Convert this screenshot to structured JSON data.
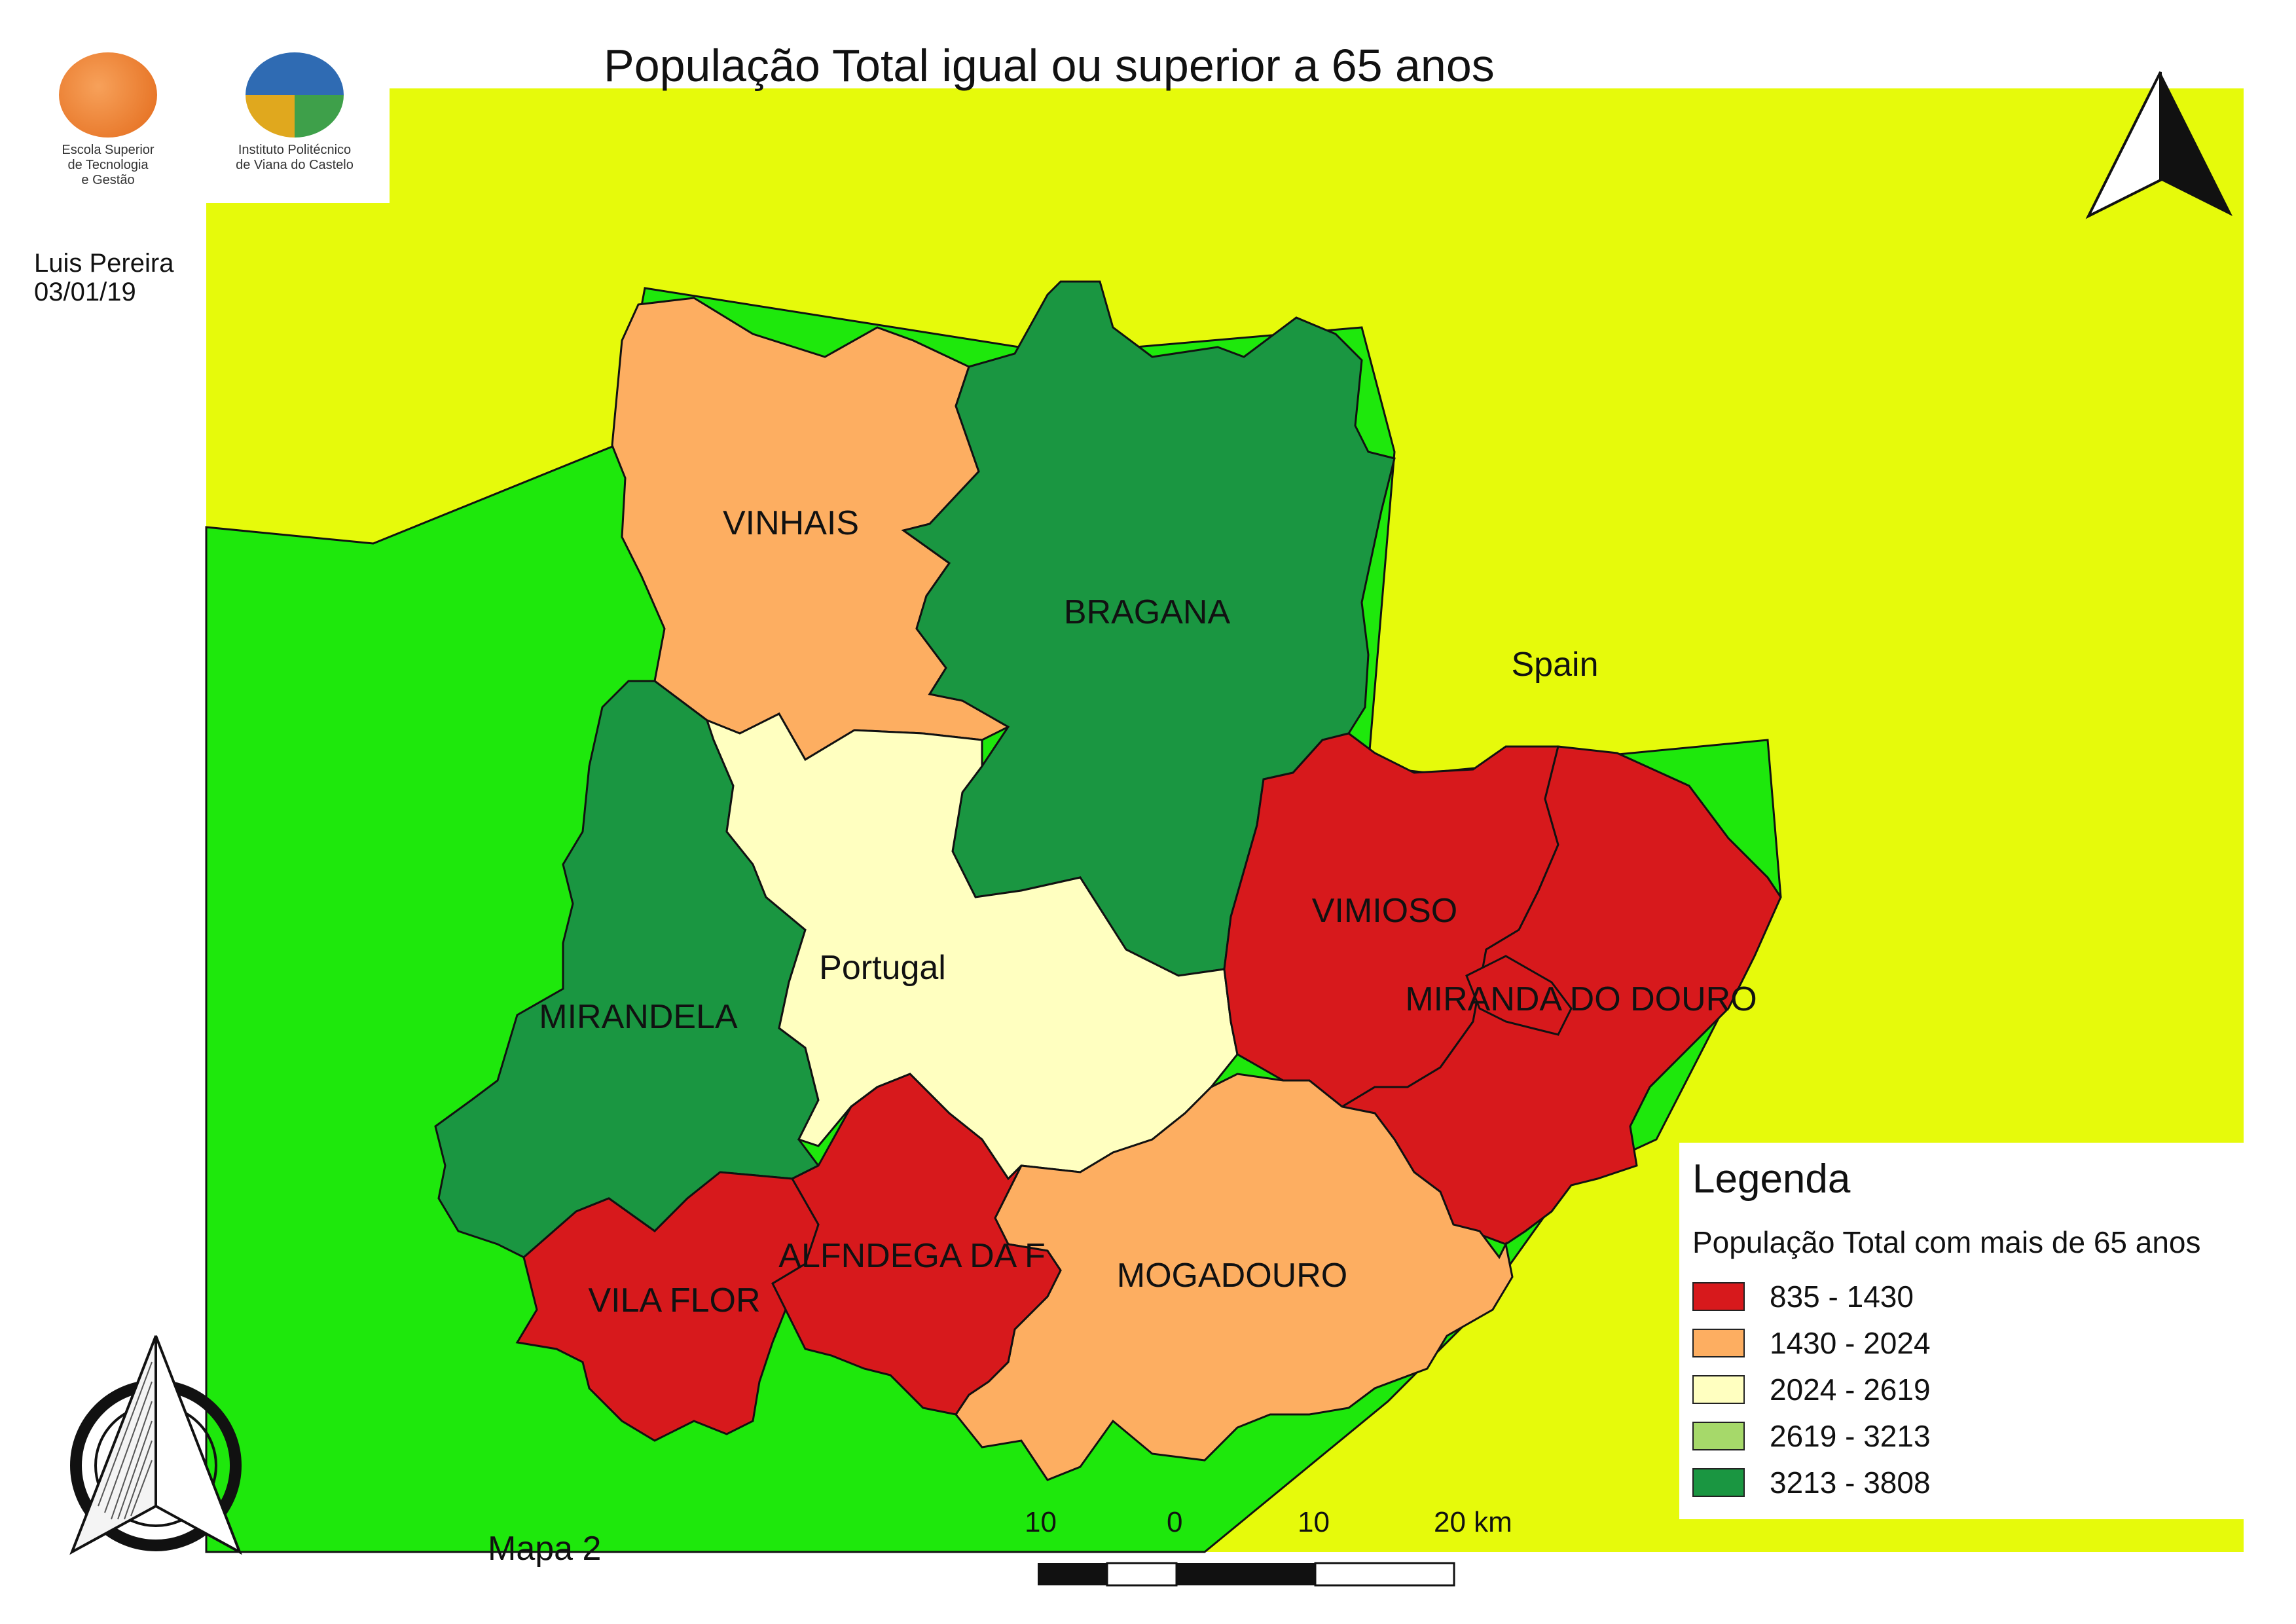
{
  "title": "População Total igual ou superior a 65 anos",
  "author": {
    "name": "Luis Pereira",
    "date": "03/01/19"
  },
  "map_label": "Mapa 2",
  "logos": [
    {
      "name": "estg",
      "lines": [
        "Escola Superior",
        "de Tecnologia",
        "e Gestão"
      ]
    },
    {
      "name": "ipvc",
      "lines": [
        "Instituto Politécnico",
        "de Viana do Castelo"
      ]
    }
  ],
  "places": {
    "spain": "Spain",
    "portugal": "Portugal",
    "vinhais": "VINHAIS",
    "bragana": "BRAGANA",
    "mirandela": "MIRANDELA",
    "vimioso": "VIMIOSO",
    "miranda": "MIRANDA DO DOURO",
    "alfandega": "ALFNDEGA DA F",
    "vila_flor": "VILA FLOR",
    "mogadouro": "MOGADOURO"
  },
  "legend": {
    "title": "Legenda",
    "subtitle": "População Total com mais de 65 anos",
    "classes": [
      {
        "label": "835 - 1430",
        "color": "#d7191c"
      },
      {
        "label": "1430 - 2024",
        "color": "#fdae61"
      },
      {
        "label": "2024 - 2619",
        "color": "#ffffc0"
      },
      {
        "label": "2619 - 3213",
        "color": "#a6d96a"
      },
      {
        "label": "3213 - 3808",
        "color": "#1a9641"
      }
    ]
  },
  "scale": {
    "labels": [
      "10",
      "0",
      "10",
      "20 km"
    ]
  },
  "colors": {
    "spain": "#e6fa0b",
    "portugal_land": "#1ee80c",
    "outline": "#111111"
  },
  "icons": {
    "north_arrow_top": "north-arrow-icon",
    "north_arrow_bottom": "compass-icon"
  }
}
